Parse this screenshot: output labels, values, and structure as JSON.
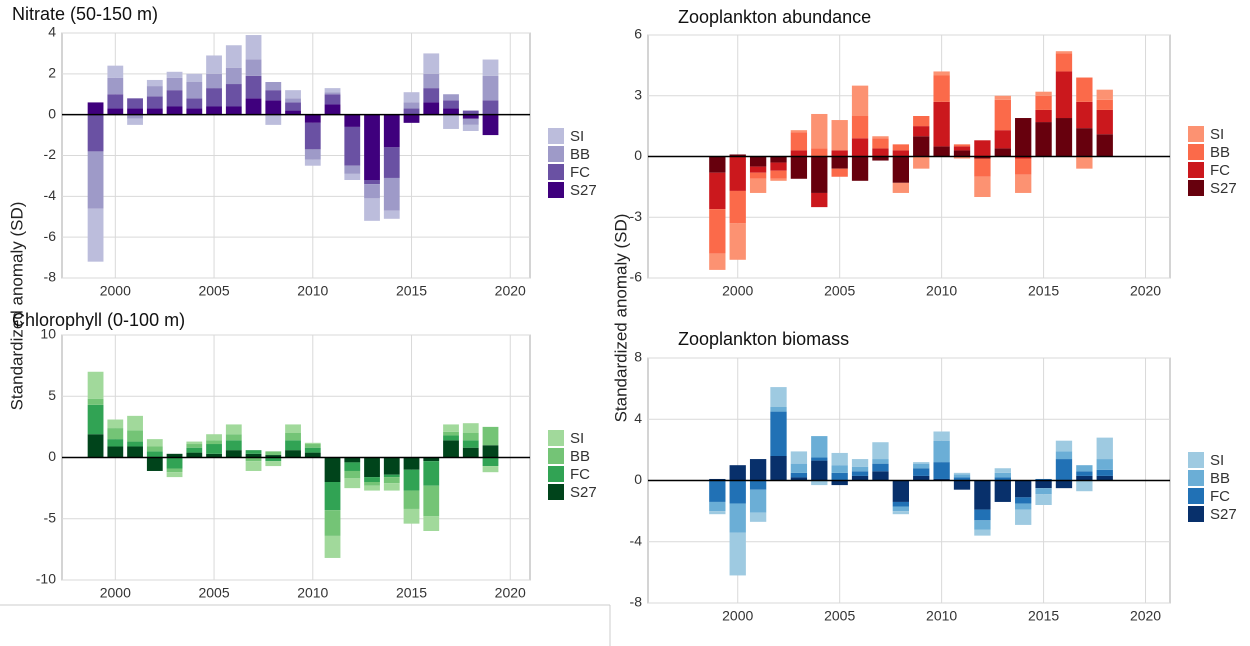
{
  "chart_data": [
    {
      "type": "bar",
      "stacked": "diverging",
      "title": "Nitrate (50-150 m)",
      "ylabel": "Standardized anomaly (SD)",
      "x": [
        1999,
        2000,
        2001,
        2002,
        2003,
        2004,
        2005,
        2006,
        2007,
        2008,
        2009,
        2010,
        2011,
        2012,
        2013,
        2014,
        2015,
        2016,
        2017,
        2018,
        2019
      ],
      "xlim": [
        1997.3,
        2021
      ],
      "xticks": [
        2000,
        2005,
        2010,
        2015,
        2020
      ],
      "ylim": [
        -8,
        4
      ],
      "yticks": [
        4,
        2,
        0,
        -2,
        -4,
        -6,
        -8
      ],
      "grid": true,
      "series": [
        {
          "name": "SI",
          "color": "#bcbddc",
          "values": [
            -2.6,
            0.6,
            -0.3,
            0.3,
            0.3,
            0.4,
            0.9,
            1.1,
            1.2,
            -0.5,
            0.4,
            -0.3,
            0.2,
            -0.3,
            -1.1,
            -0.4,
            0.5,
            1.0,
            -0.7,
            -0.3,
            0.8
          ]
        },
        {
          "name": "BB",
          "color": "#9e9ac8",
          "values": [
            -2.8,
            0.8,
            -0.2,
            0.5,
            0.6,
            0.8,
            0.7,
            0.8,
            0.8,
            0.4,
            0.2,
            -0.5,
            0.1,
            -0.4,
            -0.7,
            -1.6,
            0.3,
            0.7,
            0.3,
            -0.3,
            1.2
          ]
        },
        {
          "name": "FC",
          "color": "#6a51a3",
          "values": [
            -1.8,
            0.7,
            0.5,
            0.6,
            0.8,
            0.5,
            0.9,
            1.1,
            1.1,
            0.5,
            0.4,
            -1.3,
            0.5,
            -1.9,
            -0.2,
            -1.5,
            0.3,
            0.7,
            0.4,
            0.2,
            0.7
          ]
        },
        {
          "name": "S27",
          "color": "#3f007d",
          "values": [
            0.6,
            0.3,
            0.3,
            0.3,
            0.4,
            0.3,
            0.4,
            0.4,
            0.8,
            0.7,
            0.2,
            -0.4,
            0.5,
            -0.6,
            -3.2,
            -1.6,
            -0.4,
            0.6,
            0.3,
            -0.2,
            -1.0
          ]
        }
      ]
    },
    {
      "type": "bar",
      "stacked": "diverging",
      "title": "Chlorophyll (0-100 m)",
      "x": [
        1999,
        2000,
        2001,
        2002,
        2003,
        2004,
        2005,
        2006,
        2007,
        2008,
        2009,
        2010,
        2011,
        2012,
        2013,
        2014,
        2015,
        2016,
        2017,
        2018,
        2019
      ],
      "xlim": [
        1997.3,
        2021
      ],
      "xticks": [
        2000,
        2005,
        2010,
        2015,
        2020
      ],
      "ylim": [
        -10,
        10
      ],
      "yticks": [
        10,
        5,
        0,
        -5,
        -10
      ],
      "grid": true,
      "series": [
        {
          "name": "SI",
          "color": "#a1d99b",
          "values": [
            2.2,
            0.7,
            1.2,
            0.6,
            -0.4,
            0.2,
            0.5,
            0.8,
            -0.8,
            -0.4,
            0.7,
            0.1,
            -1.8,
            -0.8,
            -0.4,
            -0.6,
            -1.2,
            -1.2,
            0.6,
            0.8,
            -0.5
          ]
        },
        {
          "name": "BB",
          "color": "#74c476",
          "values": [
            0.5,
            0.9,
            0.9,
            0.4,
            -0.3,
            0.3,
            0.3,
            0.5,
            -0.3,
            0.3,
            0.6,
            0.3,
            -2.1,
            -0.6,
            -0.3,
            -0.5,
            -1.5,
            -2.5,
            0.3,
            0.6,
            1.5
          ]
        },
        {
          "name": "FC",
          "color": "#31a354",
          "values": [
            2.4,
            0.6,
            0.4,
            0.5,
            -0.9,
            0.4,
            0.8,
            0.8,
            0.3,
            -0.3,
            0.8,
            0.4,
            -2.3,
            -0.7,
            -0.4,
            -0.2,
            -1.7,
            -2.0,
            0.4,
            0.6,
            -0.7
          ]
        },
        {
          "name": "S27",
          "color": "#00441b",
          "values": [
            1.9,
            0.9,
            0.9,
            -1.1,
            0.3,
            0.4,
            0.3,
            0.6,
            0.3,
            0.2,
            0.6,
            0.4,
            -2.0,
            -0.4,
            -1.6,
            -1.4,
            -1.0,
            -0.3,
            1.4,
            0.8,
            1.0
          ]
        }
      ]
    },
    {
      "type": "bar",
      "stacked": "diverging",
      "title": "Zooplankton abundance",
      "ylabel": "Standardized anomaly (SD)",
      "x": [
        1999,
        2000,
        2001,
        2002,
        2003,
        2004,
        2005,
        2006,
        2007,
        2008,
        2009,
        2010,
        2011,
        2012,
        2013,
        2014,
        2015,
        2016,
        2017,
        2018
      ],
      "xlim": [
        1995.6,
        2021.2
      ],
      "xticks": [
        2000,
        2005,
        2010,
        2015,
        2020
      ],
      "ylim": [
        -6,
        6
      ],
      "yticks": [
        6,
        3,
        0,
        -3,
        -6
      ],
      "grid": true,
      "series": [
        {
          "name": "SI",
          "color": "#fc9272",
          "values": [
            -0.8,
            -1.8,
            -0.7,
            -0.1,
            0.1,
            1.7,
            1.5,
            1.5,
            0.1,
            -0.5,
            -0.6,
            0.2,
            -0.1,
            -1.0,
            0.2,
            -0.9,
            0.2,
            0.1,
            -0.6,
            0.5
          ]
        },
        {
          "name": "BB",
          "color": "#fb6a4a",
          "values": [
            -2.2,
            -1.6,
            -0.3,
            -0.4,
            0.9,
            0.4,
            -0.4,
            1.1,
            0.5,
            0.3,
            0.5,
            1.3,
            0.1,
            -0.9,
            1.5,
            -0.8,
            0.7,
            0.9,
            1.2,
            0.5
          ]
        },
        {
          "name": "FC",
          "color": "#cb181d",
          "values": [
            -1.8,
            -1.7,
            -0.3,
            -0.4,
            0.3,
            -0.7,
            0.3,
            0.9,
            0.4,
            0.3,
            0.5,
            2.2,
            0.2,
            0.8,
            0.9,
            -0.1,
            0.6,
            2.3,
            1.3,
            1.2
          ]
        },
        {
          "name": "S27",
          "color": "#67000d",
          "values": [
            -0.8,
            0.1,
            -0.5,
            -0.3,
            -1.1,
            -1.8,
            -0.6,
            -1.2,
            -0.2,
            -1.3,
            1.0,
            0.5,
            0.3,
            -0.1,
            0.4,
            1.9,
            1.7,
            1.9,
            1.4,
            1.1
          ]
        }
      ]
    },
    {
      "type": "bar",
      "stacked": "diverging",
      "title": "Zooplankton biomass",
      "x": [
        1999,
        2000,
        2001,
        2002,
        2003,
        2004,
        2005,
        2006,
        2007,
        2008,
        2009,
        2010,
        2011,
        2012,
        2013,
        2014,
        2015,
        2016,
        2017,
        2018
      ],
      "xlim": [
        1995.6,
        2021.2
      ],
      "xticks": [
        2000,
        2005,
        2010,
        2015,
        2020
      ],
      "ylim": [
        -8,
        8
      ],
      "yticks": [
        8,
        4,
        0,
        -4,
        -8
      ],
      "grid": true,
      "series": [
        {
          "name": "SI",
          "color": "#9ecae1",
          "values": [
            -0.2,
            -2.8,
            -0.6,
            1.3,
            0.8,
            -0.3,
            0.8,
            0.5,
            1.1,
            -0.2,
            0.1,
            0.6,
            0.1,
            -0.4,
            0.3,
            -1.0,
            -0.7,
            0.7,
            -0.7,
            1.4
          ]
        },
        {
          "name": "BB",
          "color": "#6baed6",
          "values": [
            -0.6,
            -1.9,
            -1.5,
            0.3,
            0.6,
            1.4,
            0.5,
            0.3,
            0.3,
            -0.3,
            0.3,
            1.4,
            0.2,
            -0.6,
            0.3,
            -0.4,
            -0.4,
            0.5,
            0.4,
            0.7
          ]
        },
        {
          "name": "FC",
          "color": "#2171b5",
          "values": [
            -1.4,
            -1.5,
            -0.6,
            2.9,
            0.3,
            0.2,
            0.5,
            0.3,
            0.5,
            -0.3,
            0.5,
            1.1,
            0.2,
            -0.7,
            0.2,
            -0.4,
            0.1,
            1.4,
            0.3,
            0.4
          ]
        },
        {
          "name": "S27",
          "color": "#08306b",
          "values": [
            0.1,
            1.0,
            1.4,
            1.6,
            0.2,
            1.3,
            -0.3,
            0.3,
            0.6,
            -1.4,
            0.3,
            0.1,
            -0.6,
            -1.9,
            -1.4,
            -1.1,
            -0.5,
            -0.5,
            0.3,
            0.3
          ]
        }
      ]
    }
  ]
}
